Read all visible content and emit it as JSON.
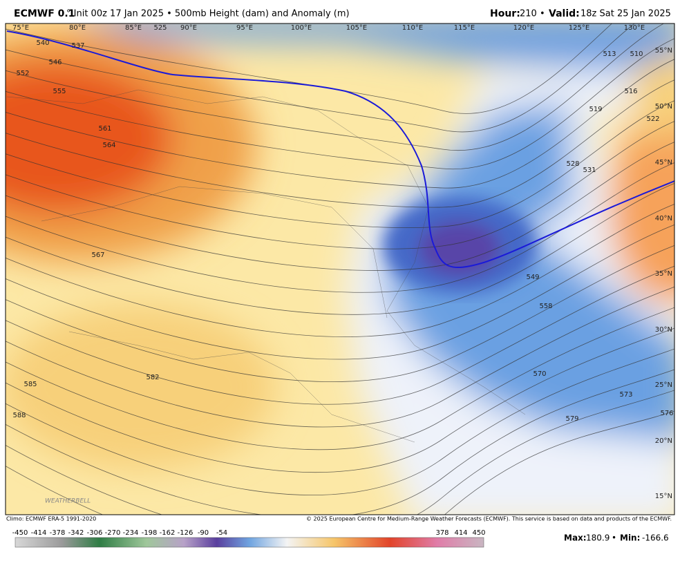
{
  "header": {
    "model": "ECMWF 0.1",
    "init": "° Init 00z 17 Jan 2025 • 500mb Height (dam) and Anomaly (m)",
    "hour_label": "Hour:",
    "hour": "210",
    "separator": "•",
    "valid_label": "Valid:",
    "valid": "18z Sat 25 Jan 2025"
  },
  "map": {
    "longitudes": [
      "75°E",
      "80°E",
      "85°E",
      "90°E",
      "95°E",
      "100°E",
      "105°E",
      "110°E",
      "115°E",
      "120°E",
      "125°E",
      "130°E"
    ],
    "latitudes": [
      "55°N",
      "50°N",
      "45°N",
      "40°N",
      "35°N",
      "30°N",
      "25°N",
      "20°N",
      "15°N"
    ],
    "contour_labels": [
      "540",
      "537",
      "546",
      "552",
      "555",
      "561",
      "564",
      "567",
      "582",
      "585",
      "588",
      "525",
      "513",
      "510",
      "516",
      "519",
      "522",
      "528",
      "531",
      "549",
      "558",
      "570",
      "573",
      "576",
      "579"
    ],
    "logo": "WEATHERBELL"
  },
  "footer": {
    "climo": "Climo: ECMWF ERA-5 1991-2020",
    "copyright": "© 2025 European Centre for Medium-Range Weather Forecasts (ECMWF). This service is based on data and products of the ECMWF."
  },
  "colorbar": {
    "labels": [
      "-450",
      "-414",
      "-378",
      "-342",
      "-306",
      "-270",
      "-234",
      "-198",
      "-162",
      "-126",
      "-90",
      "-54",
      "378",
      "414",
      "450"
    ]
  },
  "stats": {
    "max_label": "Max:",
    "max": "180.9",
    "separator": "•",
    "min_label": "Min:",
    "min": "-166.6"
  }
}
